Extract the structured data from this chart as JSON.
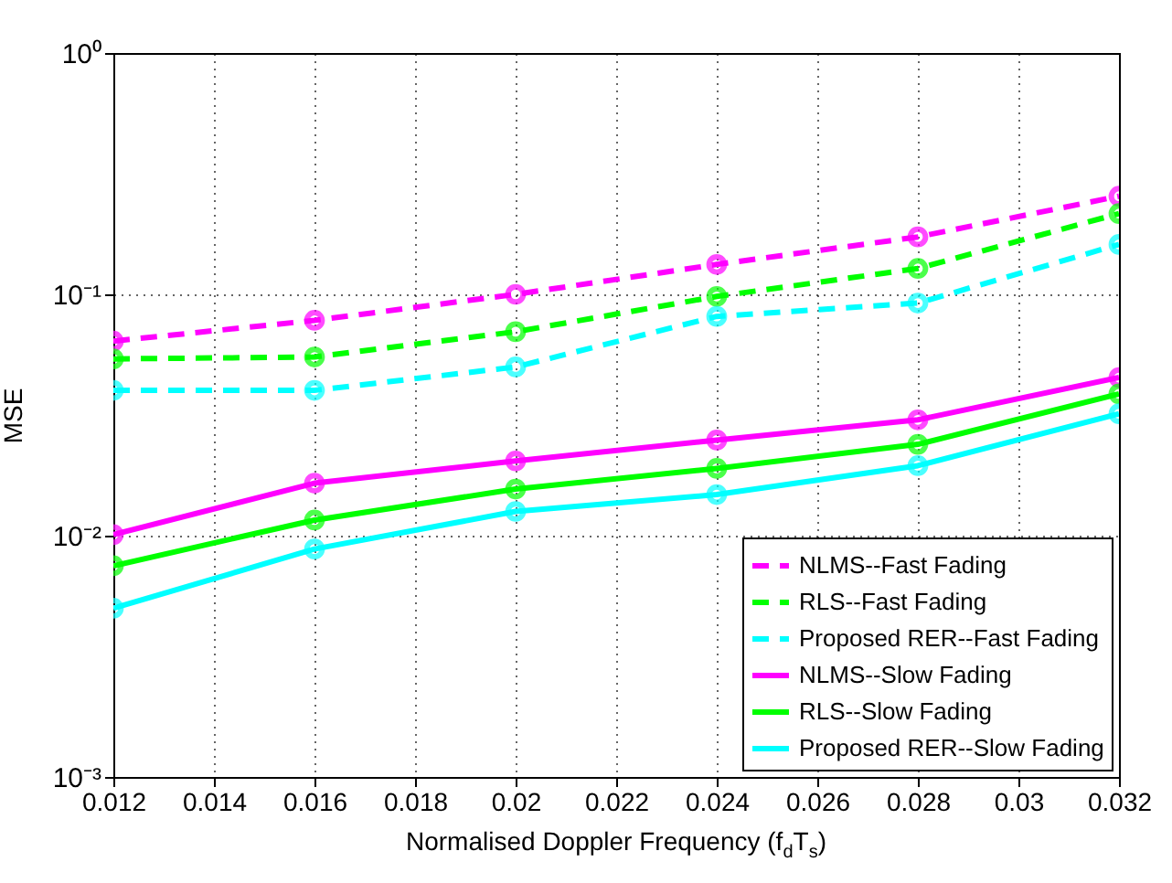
{
  "chart_data": {
    "type": "line",
    "xlabel": "Normalised Doppler Frequency (f$_{d}$T$_{s}$)",
    "ylabel": "MSE",
    "x": [
      0.012,
      0.016,
      0.02,
      0.024,
      0.028,
      0.032
    ],
    "series": [
      {
        "name": "NLMS--Fast Fading",
        "color": "#ff00ff",
        "line_style": "dashed",
        "values": [
          0.064,
          0.078,
          0.1,
          0.133,
          0.173,
          0.255
        ]
      },
      {
        "name": "RLS--Fast Fading",
        "color": "#00ff00",
        "line_style": "dashed",
        "values": [
          0.054,
          0.055,
          0.07,
          0.098,
          0.128,
          0.216
        ]
      },
      {
        "name": "Proposed RER--Fast Fading",
        "color": "#00ffff",
        "line_style": "dashed",
        "values": [
          0.04,
          0.04,
          0.05,
          0.081,
          0.092,
          0.161
        ]
      },
      {
        "name": "NLMS--Slow Fading",
        "color": "#ff00ff",
        "line_style": "solid",
        "values": [
          0.0101,
          0.0165,
          0.0204,
          0.0249,
          0.0302,
          0.0452
        ]
      },
      {
        "name": "RLS--Slow Fading",
        "color": "#00ff00",
        "line_style": "solid",
        "values": [
          0.0075,
          0.0116,
          0.0156,
          0.019,
          0.0239,
          0.0387
        ]
      },
      {
        "name": "Proposed RER--Slow Fading",
        "color": "#00ffff",
        "line_style": "solid",
        "values": [
          0.005,
          0.0088,
          0.0126,
          0.0148,
          0.0195,
          0.032
        ]
      }
    ],
    "log": "y",
    "marker": "circle",
    "grid": true,
    "legend": "bottom right",
    "xlim": [
      0.012,
      0.032
    ],
    "xticks": [
      0.012,
      0.014,
      0.016,
      0.018,
      0.02,
      0.022,
      0.024,
      0.026,
      0.028,
      0.03,
      0.032
    ],
    "ylim": [
      0.001,
      1
    ],
    "yticks": [
      {
        "value": 0.001,
        "label": "10⁻³"
      },
      {
        "value": 0.01,
        "label": "10⁻²"
      },
      {
        "value": 0.1,
        "label": "10⁻¹"
      },
      {
        "value": 1,
        "label": "10⁰"
      }
    ]
  }
}
